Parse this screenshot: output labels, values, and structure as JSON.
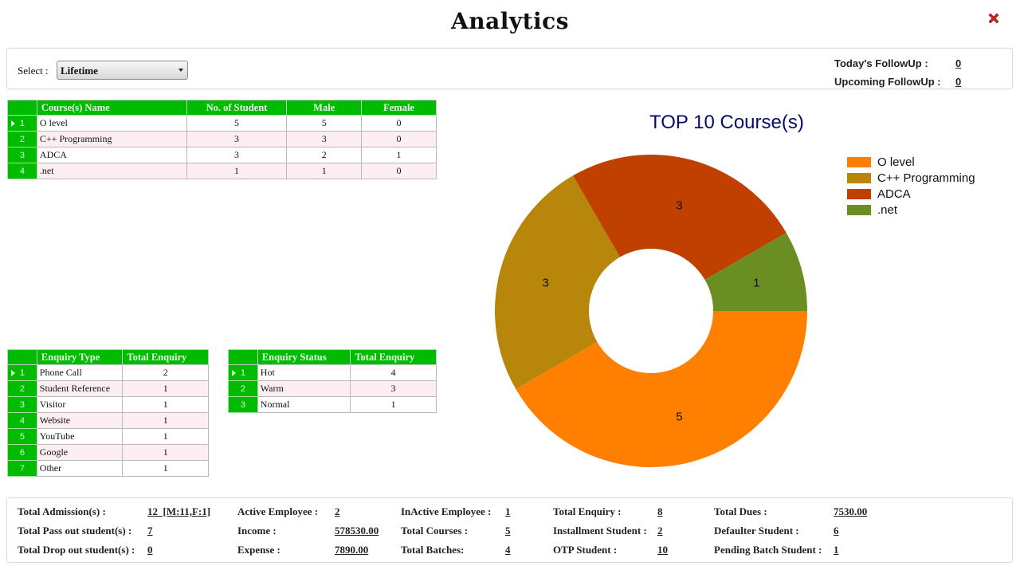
{
  "page": {
    "title": "Analytics"
  },
  "filter": {
    "label": "Select :",
    "value": "Lifetime"
  },
  "followups": {
    "today_label": "Today's FollowUp :",
    "today_value": "0",
    "upcoming_label": "Upcoming FollowUp :",
    "upcoming_value": "0"
  },
  "courses_table": {
    "headers": [
      "",
      "Course(s) Name",
      "No. of Student",
      "Male",
      "Female"
    ],
    "rows": [
      {
        "idx": "1",
        "name": "O level",
        "students": "5",
        "male": "5",
        "female": "0"
      },
      {
        "idx": "2",
        "name": "C++ Programming",
        "students": "3",
        "male": "3",
        "female": "0"
      },
      {
        "idx": "3",
        "name": "ADCA",
        "students": "3",
        "male": "2",
        "female": "1"
      },
      {
        "idx": "4",
        "name": ".net",
        "students": "1",
        "male": "1",
        "female": "0"
      }
    ]
  },
  "enquiry_type_table": {
    "headers": [
      "",
      "Enquiry Type",
      "Total Enquiry"
    ],
    "rows": [
      {
        "idx": "1",
        "type": "Phone Call",
        "total": "2"
      },
      {
        "idx": "2",
        "type": "Student Reference",
        "total": "1"
      },
      {
        "idx": "3",
        "type": "Visitor",
        "total": "1"
      },
      {
        "idx": "4",
        "type": "Website",
        "total": "1"
      },
      {
        "idx": "5",
        "type": "YouTube",
        "total": "1"
      },
      {
        "idx": "6",
        "type": "Google",
        "total": "1"
      },
      {
        "idx": "7",
        "type": "Other",
        "total": "1"
      }
    ]
  },
  "enquiry_status_table": {
    "headers": [
      "",
      "Enquiry Status",
      "Total Enquiry"
    ],
    "rows": [
      {
        "idx": "1",
        "status": "Hot",
        "total": "4"
      },
      {
        "idx": "2",
        "status": "Warm",
        "total": "3"
      },
      {
        "idx": "3",
        "status": "Normal",
        "total": "1"
      }
    ]
  },
  "chart_data": {
    "type": "pie",
    "variant": "donut",
    "title": "TOP 10 Course(s)",
    "categories": [
      "O level",
      "C++ Programming",
      "ADCA",
      ".net"
    ],
    "values": [
      5,
      3,
      3,
      1
    ],
    "colors": [
      "#ff8000",
      "#b8860b",
      "#c04000",
      "#6b8e23"
    ],
    "legend_position": "right",
    "data_labels": [
      "5",
      "3",
      "3",
      "1"
    ]
  },
  "stats": {
    "total_admissions": {
      "label": "Total Admission(s) :",
      "value": "12  [M:11,F:1]"
    },
    "total_pass_out": {
      "label": "Total Pass out student(s) :",
      "value": "7"
    },
    "total_drop_out": {
      "label": "Total Drop out student(s) :",
      "value": "0"
    },
    "active_employee": {
      "label": "Active Employee :",
      "value": "2"
    },
    "income": {
      "label": "Income :",
      "value": "578530.00"
    },
    "expense": {
      "label": "Expense :",
      "value": "7890.00"
    },
    "inactive_employee": {
      "label": "InActive Employee :",
      "value": "1"
    },
    "total_courses": {
      "label": "Total Courses :",
      "value": "5"
    },
    "total_batches": {
      "label": "Total Batches:",
      "value": "4"
    },
    "total_enquiry": {
      "label": "Total Enquiry :",
      "value": "8"
    },
    "installment_student": {
      "label": "Installment Student :",
      "value": "2"
    },
    "otp_student": {
      "label": "OTP Student :",
      "value": "10"
    },
    "total_dues": {
      "label": "Total Dues :",
      "value": "7530.00"
    },
    "defaulter_student": {
      "label": "Defaulter Student :",
      "value": "6"
    },
    "pending_batch_student": {
      "label": "Pending Batch Student :",
      "value": "1"
    }
  },
  "colors": {
    "grid_header": "#00bb00",
    "alt_row": "#fdeef2",
    "chart_title": "#0a0a6e",
    "close": "#d42020"
  }
}
